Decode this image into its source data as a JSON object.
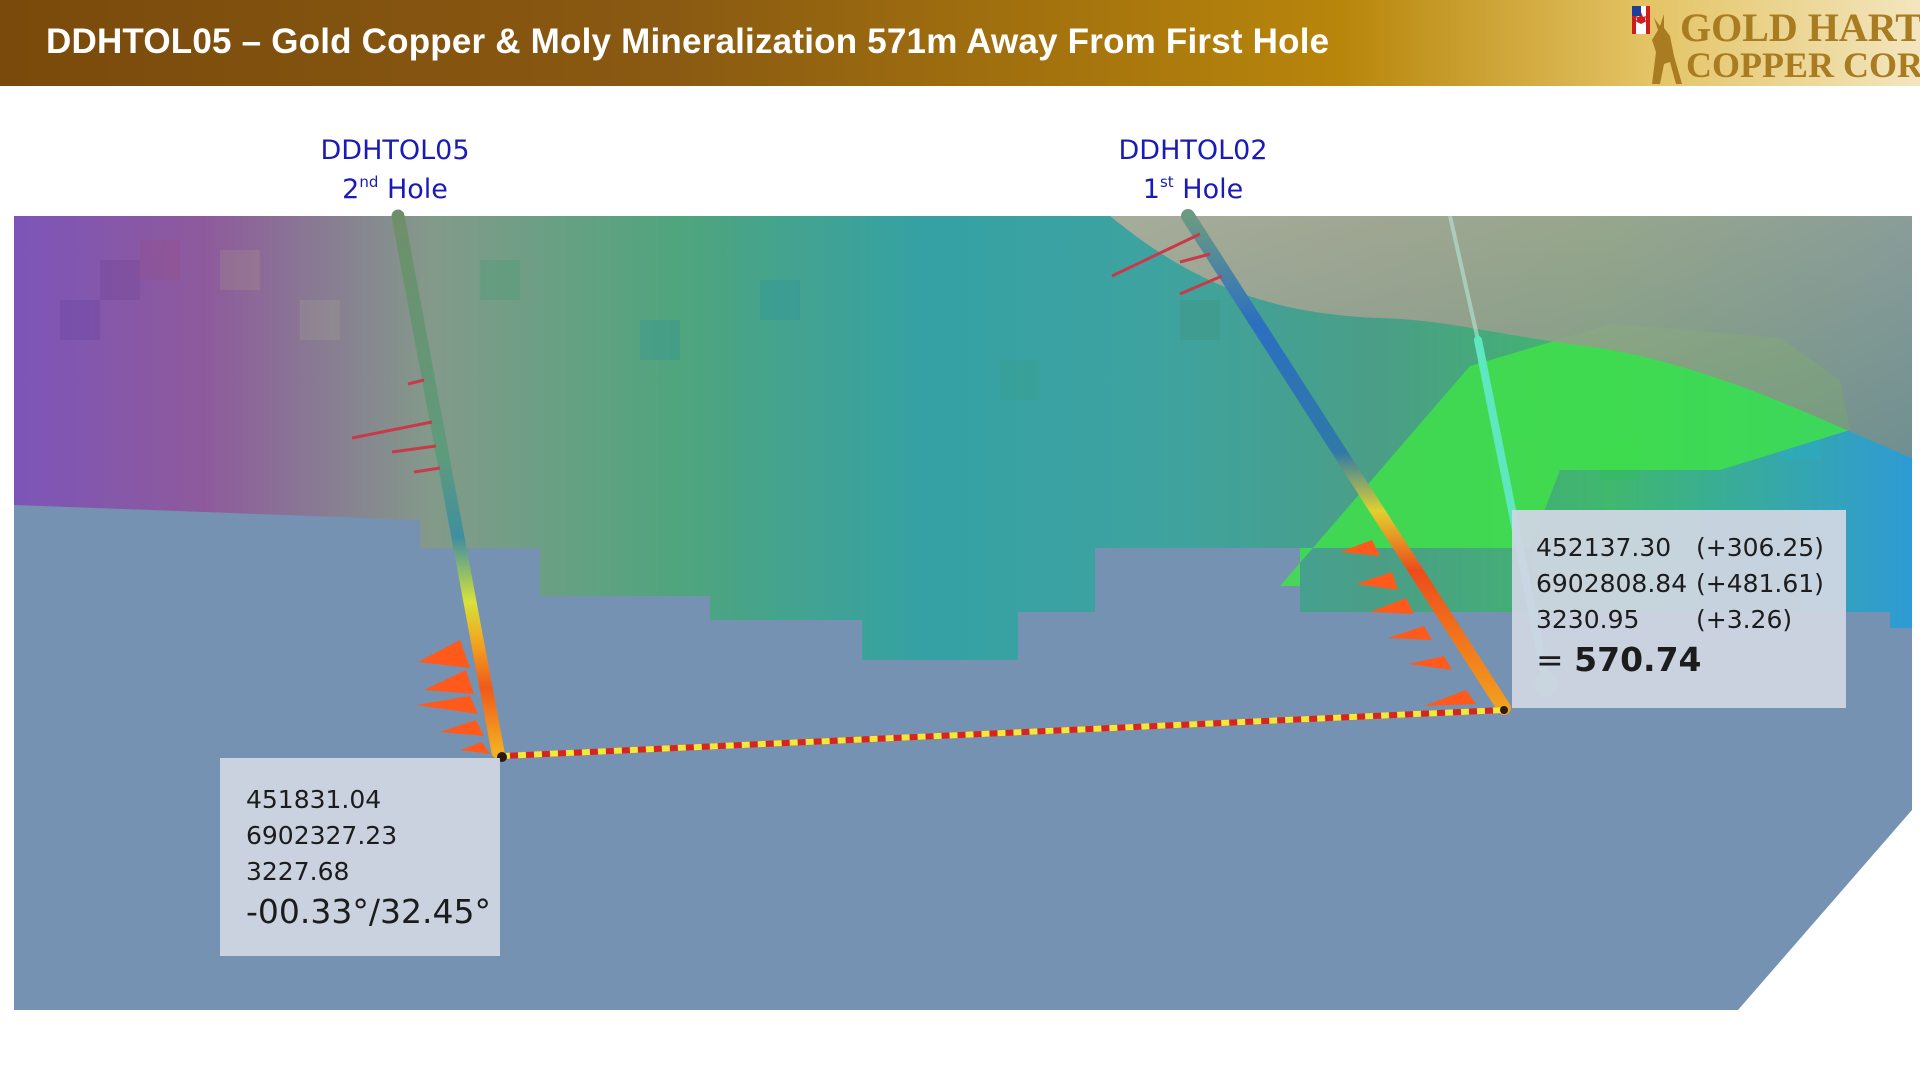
{
  "header": {
    "title": "DDHTOL05 – Gold Copper & Moly Mineralization 571m Away From First Hole"
  },
  "logo": {
    "line1": "GOLD HART",
    "line2": "COPPER CORP"
  },
  "holes": {
    "left": {
      "name": "DDHTOL05",
      "ordinal_num": "2",
      "ordinal_suffix": "nd",
      "word": "Hole"
    },
    "right": {
      "name": "DDHTOL02",
      "ordinal_num": "1",
      "ordinal_suffix": "st",
      "word": "Hole"
    }
  },
  "left_box": {
    "easting": "451831.04",
    "northing": "6902327.23",
    "elevation": "3227.68",
    "angle": "-00.33°/32.45°"
  },
  "right_box": {
    "easting": "452137.30",
    "easting_delta": "(+306.25)",
    "northing": "6902808.84",
    "northing_delta": "(+481.61)",
    "elevation": "3230.95",
    "elevation_delta": "(+3.26)",
    "distance_prefix": "=",
    "distance": "570.74"
  },
  "colors": {
    "header_brown": "#7a4a0c",
    "header_gold": "#e4c465",
    "label_blue": "#1a1ab8",
    "ground_blue": "#7592b3",
    "measure_red": "#d8231f",
    "measure_yellow": "#f2e93b"
  }
}
